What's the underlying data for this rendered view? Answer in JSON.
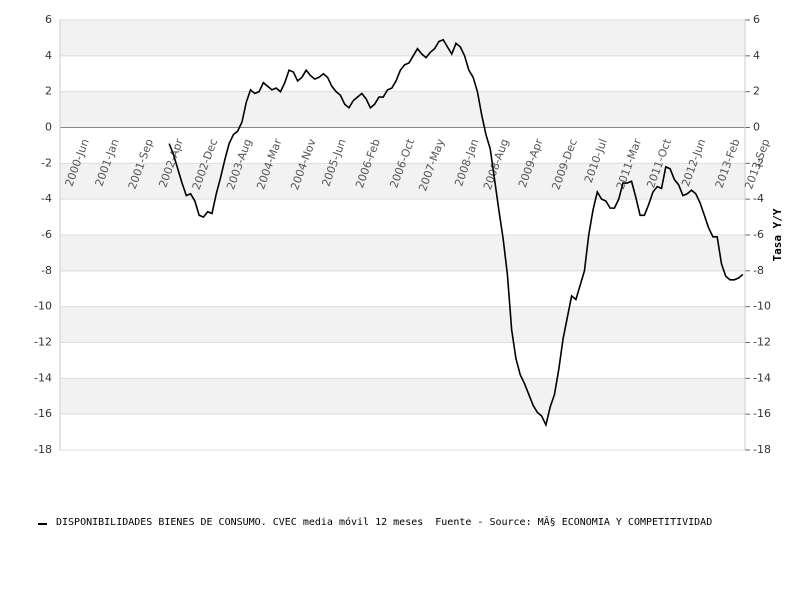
{
  "chart_data": {
    "type": "line",
    "y2_label": "Tasa Y/Y",
    "categories": [
      "2000-Jun",
      null,
      null,
      null,
      null,
      null,
      null,
      "2001-Jan",
      null,
      null,
      null,
      null,
      null,
      null,
      null,
      "2001-Sep",
      null,
      null,
      null,
      null,
      null,
      null,
      "2002-Apr",
      null,
      null,
      null,
      null,
      null,
      null,
      null,
      "2002-Dec",
      null,
      null,
      null,
      null,
      null,
      null,
      null,
      "2003-Aug",
      null,
      null,
      null,
      null,
      null,
      null,
      "2004-Mar",
      null,
      null,
      null,
      null,
      null,
      null,
      null,
      "2004-Nov",
      null,
      null,
      null,
      null,
      null,
      null,
      "2005-Jun",
      null,
      null,
      null,
      null,
      null,
      null,
      null,
      "2006-Feb",
      null,
      null,
      null,
      null,
      null,
      null,
      null,
      "2006-Oct",
      null,
      null,
      null,
      null,
      null,
      null,
      "2007-May",
      null,
      null,
      null,
      null,
      null,
      null,
      null,
      "2008-Jan",
      null,
      null,
      null,
      null,
      null,
      null,
      "2008-Aug",
      null,
      null,
      null,
      null,
      null,
      null,
      null,
      "2009-Apr",
      null,
      null,
      null,
      null,
      null,
      null,
      null,
      "2009-Dec",
      null,
      null,
      null,
      null,
      null,
      null,
      "2010-Jul",
      null,
      null,
      null,
      null,
      null,
      null,
      null,
      "2011-Mar",
      null,
      null,
      null,
      null,
      null,
      null,
      "2011-Oct",
      null,
      null,
      null,
      null,
      null,
      null,
      null,
      "2012-Jun",
      null,
      null,
      null,
      null,
      null,
      null,
      null,
      "2013-Feb",
      null,
      null,
      null,
      null,
      null,
      null,
      "2013-Sep"
    ],
    "series": [
      {
        "name": "DISPONIBILIDADES BIENES DE CONSUMO. CVEC media móvil 12 meses",
        "color": "#000000",
        "values": [
          null,
          null,
          null,
          null,
          null,
          null,
          null,
          null,
          null,
          null,
          null,
          null,
          null,
          null,
          null,
          null,
          null,
          null,
          null,
          null,
          null,
          null,
          null,
          null,
          null,
          -0.9,
          -1.5,
          -2.3,
          -3.1,
          -3.8,
          -3.7,
          -4.1,
          -4.9,
          -5.0,
          -4.7,
          -4.8,
          -3.7,
          -2.8,
          -1.8,
          -0.9,
          -0.4,
          -0.2,
          0.3,
          1.4,
          2.1,
          1.9,
          2.0,
          2.5,
          2.3,
          2.1,
          2.2,
          2.0,
          2.5,
          3.2,
          3.1,
          2.6,
          2.8,
          3.2,
          2.9,
          2.7,
          2.8,
          3.0,
          2.8,
          2.3,
          2.0,
          1.8,
          1.3,
          1.1,
          1.5,
          1.7,
          1.9,
          1.6,
          1.1,
          1.3,
          1.7,
          1.7,
          2.1,
          2.2,
          2.6,
          3.2,
          3.5,
          3.6,
          4.0,
          4.4,
          4.1,
          3.9,
          4.2,
          4.4,
          4.8,
          4.9,
          4.5,
          4.1,
          4.7,
          4.5,
          4.0,
          3.2,
          2.8,
          2.0,
          0.7,
          -0.4,
          -1.2,
          -2.9,
          -4.6,
          -6.2,
          -8.2,
          -11.3,
          -12.9,
          -13.8,
          -14.3,
          -14.9,
          -15.5,
          -15.9,
          -16.1,
          -16.6,
          -15.6,
          -14.9,
          -13.5,
          -11.8,
          -10.6,
          -9.4,
          -9.6,
          -8.8,
          -8.0,
          -6.0,
          -4.6,
          -3.6,
          -4.0,
          -4.1,
          -4.5,
          -4.5,
          -4.0,
          -3.1,
          -3.1,
          -3.0,
          -3.9,
          -4.9,
          -4.9,
          -4.3,
          -3.6,
          -3.3,
          -3.4,
          -2.2,
          -2.3,
          -2.9,
          -3.2,
          -3.8,
          -3.7,
          -3.5,
          -3.7,
          -4.2,
          -4.9,
          -5.6,
          -6.1,
          -6.1,
          -7.6,
          -8.3,
          -8.5,
          -8.5,
          -8.4,
          -8.2
        ]
      }
    ],
    "source": "Fuente - Source: MÂ§ ECONOMIA Y COMPETITIVIDAD",
    "ylim": [
      -18,
      6
    ],
    "yticks": [
      -18,
      -16,
      -14,
      -12,
      -10,
      -8,
      -6,
      -4,
      -2,
      0,
      2,
      4,
      6
    ],
    "y2lim": [
      -18,
      6
    ],
    "y2ticks": [
      -18,
      -16,
      -14,
      -12,
      -10,
      -8,
      -6,
      -4,
      -2,
      0,
      2,
      4,
      6
    ],
    "grid": true,
    "band_color": "#f2f2f2",
    "legend": "bottom"
  }
}
